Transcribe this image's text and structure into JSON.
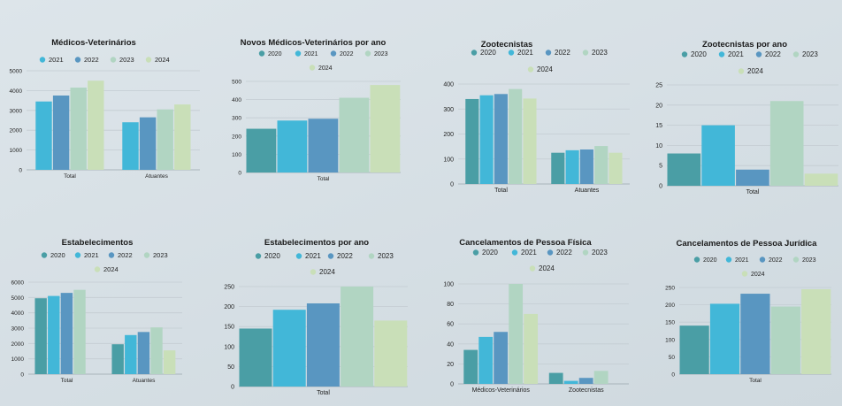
{
  "series_colors": {
    "2020": "#4a9ea5",
    "2021": "#42b7d8",
    "2022": "#5996c1",
    "2023": "#b1d5c2",
    "2024": "#c9dfb8"
  },
  "chart_data": [
    {
      "type": "bar",
      "title": "Médicos-Veterinários",
      "categories": [
        "Total",
        "Atuantes"
      ],
      "series": [
        {
          "name": "2021",
          "values": [
            3450,
            2400
          ]
        },
        {
          "name": "2022",
          "values": [
            3750,
            2650
          ]
        },
        {
          "name": "2023",
          "values": [
            4150,
            3050
          ]
        },
        {
          "name": "2024",
          "values": [
            4500,
            3300
          ]
        }
      ],
      "ylim": [
        0,
        5000
      ],
      "yticks": [
        0,
        1000,
        2000,
        3000,
        4000,
        5000
      ],
      "grid": true,
      "legend": "top"
    },
    {
      "type": "bar",
      "title": "Novos Médicos-Veterinários por ano",
      "categories": [
        "Total"
      ],
      "series": [
        {
          "name": "2020",
          "values": [
            240
          ]
        },
        {
          "name": "2021",
          "values": [
            285
          ]
        },
        {
          "name": "2022",
          "values": [
            295
          ]
        },
        {
          "name": "2023",
          "values": [
            410
          ]
        },
        {
          "name": "2024",
          "values": [
            480
          ]
        }
      ],
      "ylim": [
        0,
        500
      ],
      "yticks": [
        0,
        100,
        200,
        300,
        400,
        500
      ],
      "grid": true,
      "legend": "top"
    },
    {
      "type": "bar",
      "title": "Zootecnistas",
      "categories": [
        "Total",
        "Atuantes"
      ],
      "series": [
        {
          "name": "2020",
          "values": [
            340,
            125
          ]
        },
        {
          "name": "2021",
          "values": [
            355,
            135
          ]
        },
        {
          "name": "2022",
          "values": [
            360,
            138
          ]
        },
        {
          "name": "2023",
          "values": [
            380,
            152
          ]
        },
        {
          "name": "2024",
          "values": [
            342,
            125
          ]
        }
      ],
      "ylim": [
        0,
        400
      ],
      "yticks": [
        0,
        100,
        200,
        300,
        400
      ],
      "grid": true,
      "legend": "top"
    },
    {
      "type": "bar",
      "title": "Zootecnistas por ano",
      "categories": [
        "Total"
      ],
      "series": [
        {
          "name": "2020",
          "values": [
            8
          ]
        },
        {
          "name": "2021",
          "values": [
            15
          ]
        },
        {
          "name": "2022",
          "values": [
            4
          ]
        },
        {
          "name": "2023",
          "values": [
            21
          ]
        },
        {
          "name": "2024",
          "values": [
            3
          ]
        }
      ],
      "ylim": [
        0,
        25
      ],
      "yticks": [
        0,
        5,
        10,
        15,
        20,
        25
      ],
      "grid": true,
      "legend": "top"
    },
    {
      "type": "bar",
      "title": "Estabelecimentos",
      "categories": [
        "Total",
        "Atuantes"
      ],
      "series": [
        {
          "name": "2020",
          "values": [
            4950,
            1950
          ]
        },
        {
          "name": "2021",
          "values": [
            5100,
            2550
          ]
        },
        {
          "name": "2022",
          "values": [
            5300,
            2750
          ]
        },
        {
          "name": "2023",
          "values": [
            5500,
            3050
          ]
        },
        {
          "name": "2024",
          "values": [
            0,
            1550
          ]
        }
      ],
      "ylim": [
        0,
        6000
      ],
      "yticks": [
        0,
        1000,
        2000,
        3000,
        4000,
        5000,
        6000
      ],
      "grid": true,
      "legend": "top"
    },
    {
      "type": "bar",
      "title": "Estabelecimentos por ano",
      "categories": [
        "Total"
      ],
      "series": [
        {
          "name": "2020",
          "values": [
            145
          ]
        },
        {
          "name": "2021",
          "values": [
            192
          ]
        },
        {
          "name": "2022",
          "values": [
            208
          ]
        },
        {
          "name": "2023",
          "values": [
            250
          ]
        },
        {
          "name": "2024",
          "values": [
            165
          ]
        }
      ],
      "ylim": [
        0,
        250
      ],
      "yticks": [
        0,
        50,
        100,
        150,
        200,
        250
      ],
      "grid": true,
      "legend": "top"
    },
    {
      "type": "bar",
      "title": "Cancelamentos de Pessoa Física",
      "categories": [
        "Médicos-Veterinários",
        "Zootecnistas"
      ],
      "series": [
        {
          "name": "2020",
          "values": [
            34,
            11
          ]
        },
        {
          "name": "2021",
          "values": [
            47,
            3
          ]
        },
        {
          "name": "2022",
          "values": [
            52,
            6
          ]
        },
        {
          "name": "2023",
          "values": [
            100,
            13
          ]
        },
        {
          "name": "2024",
          "values": [
            70,
            0
          ]
        }
      ],
      "ylim": [
        0,
        100
      ],
      "yticks": [
        0,
        20,
        40,
        60,
        80,
        100
      ],
      "grid": true,
      "legend": "top"
    },
    {
      "type": "bar",
      "title": "Cancelamentos de Pessoa Jurídica",
      "categories": [
        "Total"
      ],
      "series": [
        {
          "name": "2020",
          "values": [
            140
          ]
        },
        {
          "name": "2021",
          "values": [
            203
          ]
        },
        {
          "name": "2022",
          "values": [
            232
          ]
        },
        {
          "name": "2023",
          "values": [
            195
          ]
        },
        {
          "name": "2024",
          "values": [
            245
          ]
        }
      ],
      "ylim": [
        0,
        250
      ],
      "yticks": [
        0,
        50,
        100,
        150,
        200,
        250
      ],
      "grid": true,
      "legend": "top"
    }
  ]
}
